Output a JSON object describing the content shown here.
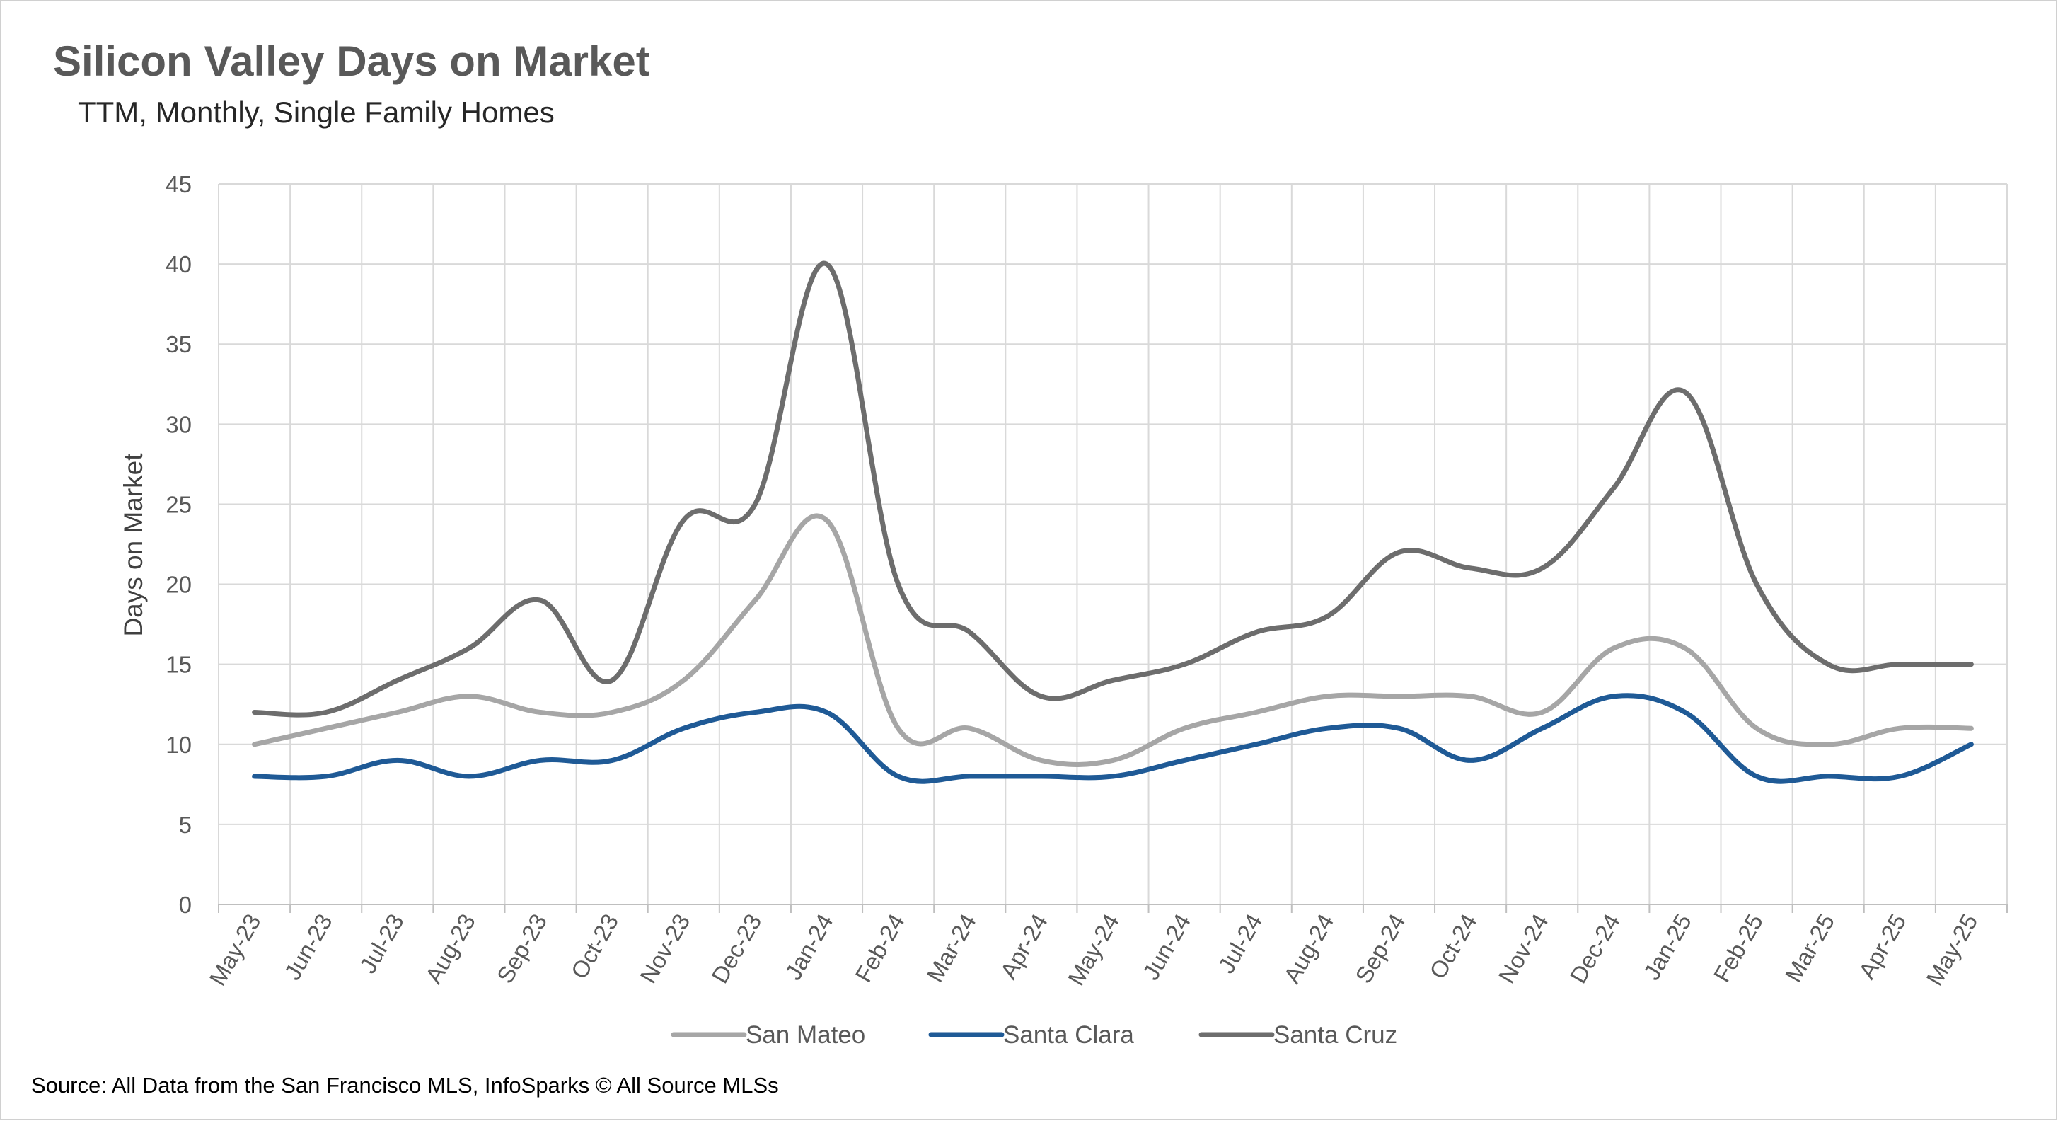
{
  "chart_data": {
    "type": "line",
    "title": "Silicon Valley Days on Market",
    "subtitle": "TTM, Monthly, Single Family Homes",
    "xlabel": "",
    "ylabel": "Days on Market",
    "ylim": [
      0,
      45
    ],
    "yticks": [
      0,
      5,
      10,
      15,
      20,
      25,
      30,
      35,
      40,
      45
    ],
    "categories": [
      "May-23",
      "Jun-23",
      "Jul-23",
      "Aug-23",
      "Sep-23",
      "Oct-23",
      "Nov-23",
      "Dec-23",
      "Jan-24",
      "Feb-24",
      "Mar-24",
      "Apr-24",
      "May-24",
      "Jun-24",
      "Jul-24",
      "Aug-24",
      "Sep-24",
      "Oct-24",
      "Nov-24",
      "Dec-24",
      "Jan-25",
      "Feb-25",
      "Mar-25",
      "Apr-25",
      "May-25"
    ],
    "series": [
      {
        "name": "San Mateo",
        "color": "#a6a6a6",
        "values": [
          10,
          11,
          12,
          13,
          12,
          12,
          14,
          19,
          24,
          11,
          11,
          9,
          9,
          11,
          12,
          13,
          13,
          13,
          12,
          16,
          16,
          11,
          10,
          11,
          11
        ]
      },
      {
        "name": "Santa Clara",
        "color": "#1f5a96",
        "values": [
          8,
          8,
          9,
          8,
          9,
          9,
          11,
          12,
          12,
          8,
          8,
          8,
          8,
          9,
          10,
          11,
          11,
          9,
          11,
          13,
          12,
          8,
          8,
          8,
          10
        ]
      },
      {
        "name": "Santa Cruz",
        "color": "#6d6d6d",
        "values": [
          12,
          12,
          14,
          16,
          19,
          14,
          24,
          25,
          40,
          20,
          17,
          13,
          14,
          15,
          17,
          18,
          22,
          21,
          21,
          26,
          32,
          20,
          15,
          15,
          15
        ]
      }
    ],
    "grid": true,
    "legend_position": "bottom"
  },
  "source": "Source: All Data from the San Francisco MLS, InfoSparks © All Source MLSs"
}
